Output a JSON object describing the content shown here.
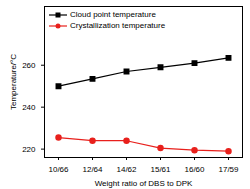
{
  "chart_data": {
    "type": "line",
    "x_label": "Weight ratio of DBS to DPK",
    "y_label": "Temperature/°C",
    "categories": [
      "10/66",
      "12/64",
      "14/62",
      "15/61",
      "16/60",
      "17/59"
    ],
    "series": [
      {
        "name": "Cloud point temperature",
        "color": "#000000",
        "marker": "square",
        "values": [
          250,
          253.5,
          257,
          259,
          261,
          263.5
        ]
      },
      {
        "name": "Crystallization temperature",
        "color": "#e8201c",
        "marker": "circle",
        "values": [
          225.5,
          224,
          224,
          220.5,
          219.5,
          219
        ]
      }
    ],
    "ylim": [
      216,
      288
    ],
    "yticks": [
      220,
      240,
      260
    ],
    "legend": "top-left"
  }
}
